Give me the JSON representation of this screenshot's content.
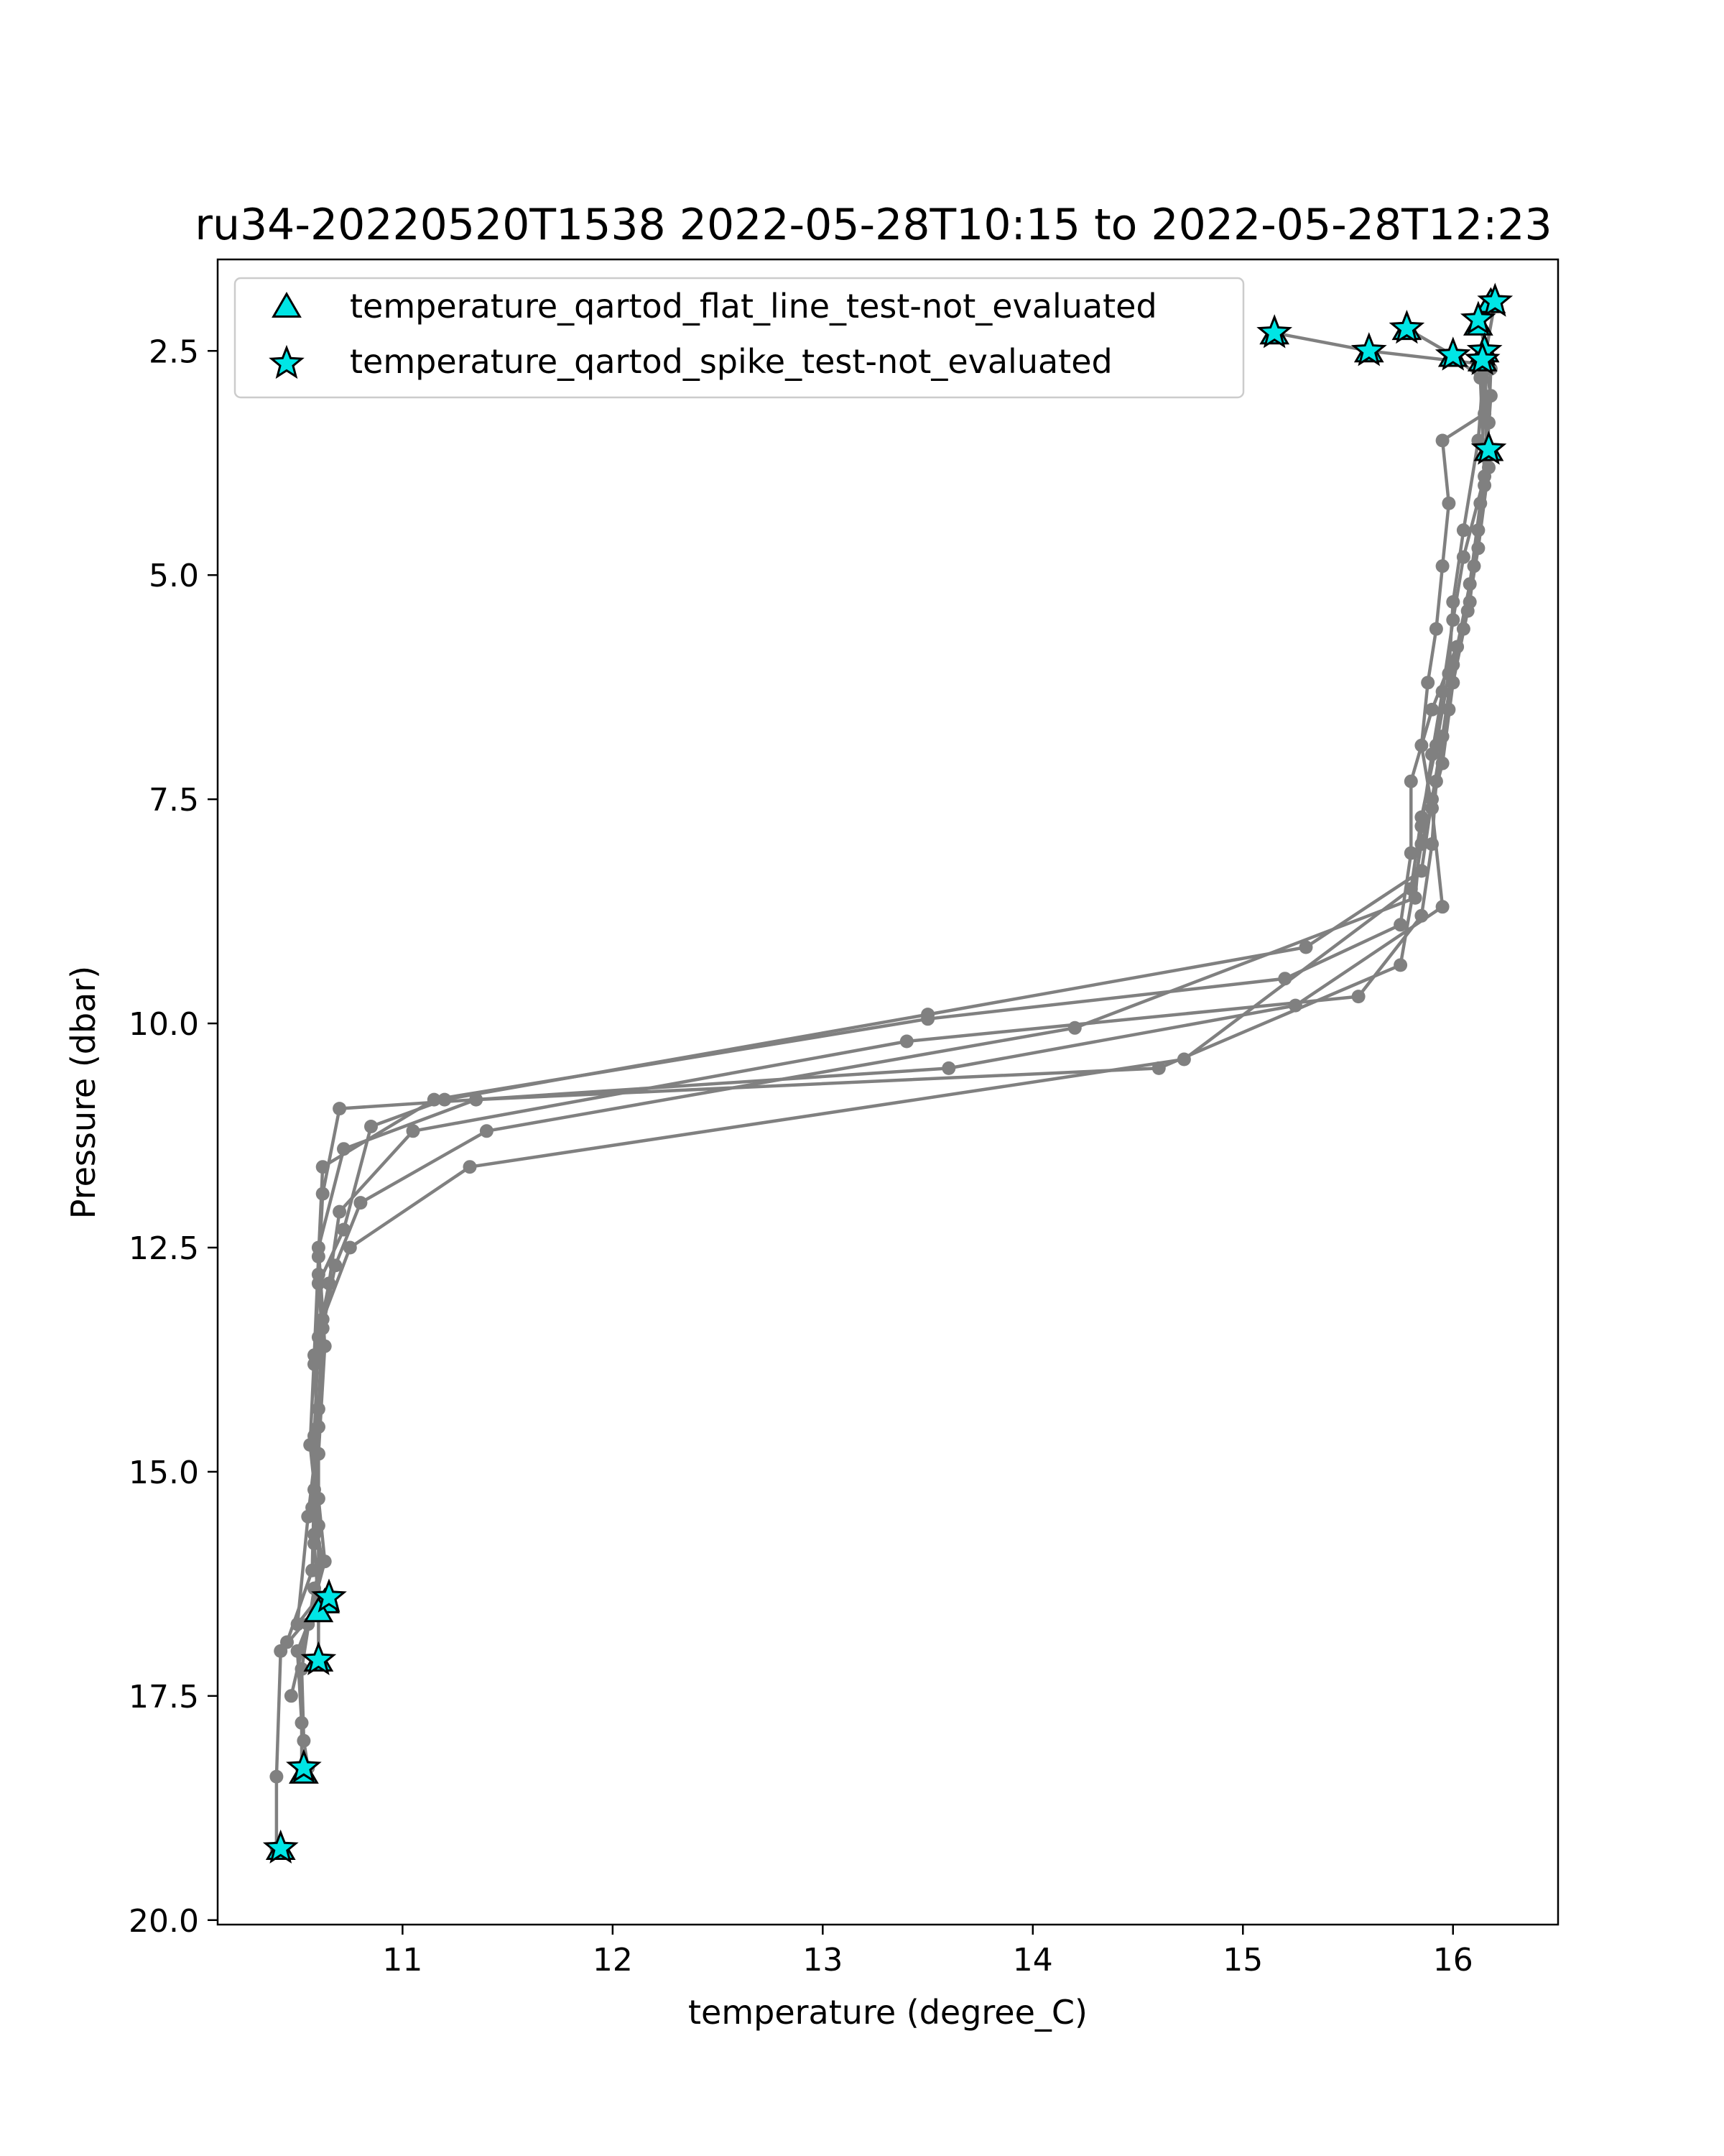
{
  "chart_data": {
    "type": "line",
    "title": "ru34-20220520T1538 2022-05-28T10:15 to 2022-05-28T12:23",
    "xlabel": "temperature (degree_C)",
    "ylabel": "Pressure (dbar)",
    "xlim": [
      10.12,
      16.5
    ],
    "ylim": [
      20.05,
      1.48
    ],
    "y_inverted": true,
    "xticks": [
      11,
      12,
      13,
      14,
      15,
      16
    ],
    "yticks": [
      2.5,
      5.0,
      7.5,
      10.0,
      12.5,
      15.0,
      17.5,
      20.0
    ],
    "xtick_labels": [
      "11",
      "12",
      "13",
      "14",
      "15",
      "16"
    ],
    "ytick_labels": [
      "2.5",
      "5.0",
      "7.5",
      "10.0",
      "12.5",
      "15.0",
      "17.5",
      "20.0"
    ],
    "grid": false,
    "legend_position": "upper left",
    "colors": {
      "profile": "#808080",
      "flag_fill": "#00e5e5",
      "flag_edge": "#000000"
    },
    "legend": [
      {
        "label": "temperature_qartod_flat_line_test-not_evaluated",
        "marker": "triangle"
      },
      {
        "label": "temperature_qartod_spike_test-not_evaluated",
        "marker": "star"
      }
    ],
    "series": [
      {
        "points": [
          [
            15.15,
            2.3
          ],
          [
            15.6,
            2.5
          ],
          [
            16.15,
            2.65
          ],
          [
            16.17,
            3.6
          ],
          [
            16.12,
            4.5
          ],
          [
            16.08,
            5.3
          ],
          [
            16.0,
            6.0
          ],
          [
            15.95,
            6.8
          ],
          [
            15.9,
            7.5
          ],
          [
            15.85,
            8.3
          ],
          [
            15.3,
            9.15
          ],
          [
            13.5,
            9.9
          ],
          [
            11.2,
            10.85
          ],
          [
            10.85,
            11.15
          ],
          [
            10.72,
            12.3
          ],
          [
            10.6,
            12.9
          ],
          [
            10.58,
            13.8
          ],
          [
            10.6,
            14.8
          ],
          [
            10.58,
            15.8
          ],
          [
            10.6,
            16.5
          ],
          [
            10.42,
            17.0
          ],
          [
            10.4,
            18.4
          ],
          [
            10.4,
            19.2
          ]
        ]
      },
      {
        "points": [
          [
            16.2,
            1.95
          ],
          [
            16.15,
            2.6
          ],
          [
            16.18,
            3.0
          ],
          [
            16.15,
            4.0
          ],
          [
            16.1,
            4.9
          ],
          [
            16.05,
            5.6
          ],
          [
            15.9,
            6.5
          ],
          [
            15.8,
            7.3
          ],
          [
            15.8,
            8.1
          ],
          [
            15.75,
            8.9
          ],
          [
            15.2,
            9.5
          ],
          [
            13.5,
            9.95
          ],
          [
            11.15,
            10.85
          ],
          [
            10.62,
            11.6
          ],
          [
            10.6,
            12.6
          ],
          [
            10.58,
            13.7
          ],
          [
            10.56,
            14.7
          ],
          [
            10.6,
            15.6
          ],
          [
            10.6,
            16.4
          ],
          [
            10.5,
            17.0
          ],
          [
            10.52,
            17.8
          ],
          [
            10.52,
            18.3
          ]
        ]
      },
      {
        "points": [
          [
            15.78,
            2.25
          ],
          [
            16.0,
            2.55
          ],
          [
            16.13,
            2.8
          ],
          [
            16.15,
            3.9
          ],
          [
            16.05,
            4.8
          ],
          [
            16.0,
            5.5
          ],
          [
            15.95,
            6.3
          ],
          [
            15.9,
            7.0
          ],
          [
            15.85,
            7.8
          ],
          [
            15.82,
            8.6
          ],
          [
            14.2,
            10.05
          ],
          [
            11.4,
            11.2
          ],
          [
            10.8,
            12.0
          ],
          [
            10.68,
            12.7
          ],
          [
            10.62,
            13.4
          ],
          [
            10.6,
            14.5
          ],
          [
            10.55,
            15.5
          ],
          [
            10.5,
            16.7
          ],
          [
            10.6,
            16.4
          ],
          [
            10.6,
            17.1
          ]
        ]
      },
      {
        "points": [
          [
            16.12,
            2.15
          ],
          [
            16.18,
            2.7
          ],
          [
            16.17,
            3.3
          ],
          [
            16.13,
            4.2
          ],
          [
            16.08,
            5.1
          ],
          [
            16.02,
            5.8
          ],
          [
            15.98,
            6.5
          ],
          [
            15.92,
            7.3
          ],
          [
            15.9,
            8.0
          ],
          [
            15.85,
            8.8
          ],
          [
            15.55,
            9.7
          ],
          [
            13.4,
            10.2
          ],
          [
            11.05,
            11.2
          ],
          [
            10.7,
            12.1
          ],
          [
            10.65,
            12.9
          ],
          [
            10.6,
            13.5
          ],
          [
            10.58,
            14.6
          ],
          [
            10.57,
            15.4
          ],
          [
            10.62,
            16.0
          ],
          [
            10.58,
            16.3
          ],
          [
            10.52,
            17.2
          ],
          [
            10.53,
            18.0
          ],
          [
            10.55,
            18.3
          ]
        ]
      },
      {
        "points": [
          [
            16.15,
            2.5
          ],
          [
            16.15,
            3.2
          ],
          [
            15.95,
            3.5
          ],
          [
            15.98,
            4.2
          ],
          [
            15.95,
            4.9
          ],
          [
            15.92,
            5.6
          ],
          [
            15.88,
            6.2
          ],
          [
            15.85,
            6.9
          ],
          [
            15.9,
            7.6
          ],
          [
            15.95,
            8.7
          ],
          [
            15.25,
            9.8
          ],
          [
            13.6,
            10.5
          ],
          [
            10.7,
            10.95
          ],
          [
            10.62,
            11.9
          ],
          [
            10.6,
            12.8
          ],
          [
            10.62,
            13.6
          ],
          [
            10.6,
            14.5
          ],
          [
            10.6,
            15.3
          ],
          [
            10.63,
            16.0
          ],
          [
            10.55,
            16.7
          ],
          [
            10.47,
            17.5
          ]
        ]
      },
      {
        "points": [
          [
            16.15,
            2.55
          ],
          [
            16.12,
            3.5
          ],
          [
            16.05,
            4.5
          ],
          [
            16.0,
            5.3
          ],
          [
            15.98,
            6.1
          ],
          [
            15.92,
            6.9
          ],
          [
            15.85,
            7.7
          ],
          [
            15.8,
            8.5
          ],
          [
            14.72,
            10.4
          ],
          [
            11.32,
            11.6
          ],
          [
            10.75,
            12.5
          ],
          [
            10.62,
            13.3
          ],
          [
            10.6,
            14.3
          ],
          [
            10.58,
            15.2
          ],
          [
            10.57,
            16.1
          ],
          [
            10.45,
            16.9
          ]
        ]
      },
      {
        "points": [
          [
            16.13,
            2.6
          ],
          [
            16.17,
            3.8
          ],
          [
            16.12,
            4.7
          ],
          [
            16.07,
            5.4
          ],
          [
            16.0,
            6.2
          ],
          [
            15.95,
            7.1
          ],
          [
            15.85,
            8.0
          ],
          [
            15.75,
            9.35
          ],
          [
            14.6,
            10.5
          ],
          [
            11.35,
            10.85
          ],
          [
            10.72,
            11.4
          ],
          [
            10.6,
            12.5
          ],
          [
            10.63,
            13.6
          ],
          [
            10.6,
            14.8
          ],
          [
            10.58,
            15.7
          ]
        ]
      }
    ],
    "flat_line_flags": [
      [
        16.18,
        1.95
      ],
      [
        16.12,
        2.2
      ],
      [
        15.78,
        2.25
      ],
      [
        15.15,
        2.3
      ],
      [
        15.6,
        2.5
      ],
      [
        16.15,
        2.5
      ],
      [
        16.0,
        2.55
      ],
      [
        16.14,
        2.6
      ],
      [
        16.17,
        3.6
      ],
      [
        10.63,
        16.45
      ],
      [
        10.6,
        16.55
      ],
      [
        10.6,
        17.1
      ],
      [
        10.53,
        18.35
      ],
      [
        10.42,
        19.2
      ]
    ],
    "spike_flags": [
      [
        16.2,
        1.95
      ],
      [
        16.12,
        2.15
      ],
      [
        15.78,
        2.25
      ],
      [
        15.15,
        2.3
      ],
      [
        15.6,
        2.5
      ],
      [
        16.15,
        2.5
      ],
      [
        16.0,
        2.55
      ],
      [
        16.14,
        2.6
      ],
      [
        16.17,
        3.6
      ],
      [
        10.65,
        16.4
      ],
      [
        10.6,
        17.1
      ],
      [
        10.53,
        18.3
      ],
      [
        10.42,
        19.2
      ]
    ]
  }
}
